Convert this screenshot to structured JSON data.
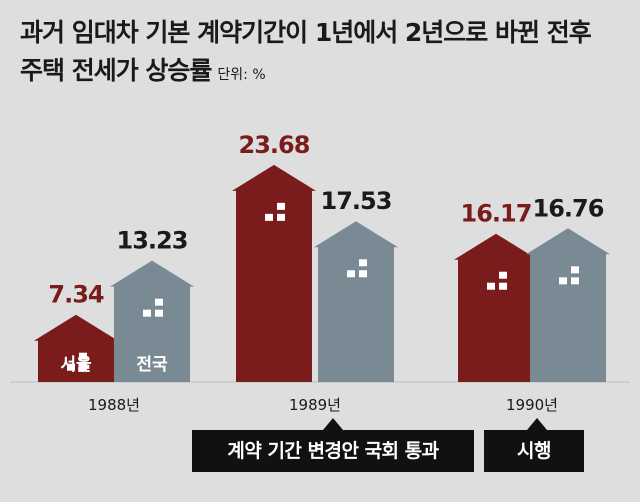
{
  "title_line1": "과거 임대차 기본 계약기간이 1년에서 2년으로 바뀐 전후",
  "title_line2": "주택 전세가 상승률",
  "unit": "단위: %",
  "notes": {
    "law_passed": "계약 기간 변경안 국회 통과",
    "enforced": "시행"
  },
  "colors": {
    "seoul": "#7a1c1c",
    "national": "#7a8a94",
    "seoul_label": "#7a1c1c",
    "national_label": "#1a1a1a",
    "background": "#dedede"
  },
  "chart_data": {
    "type": "bar",
    "categories": [
      "1988년",
      "1989년",
      "1990년"
    ],
    "series": [
      {
        "name": "서울",
        "values": [
          7.34,
          23.68,
          16.17
        ]
      },
      {
        "name": "전국",
        "values": [
          13.23,
          17.53,
          16.76
        ]
      }
    ],
    "value_labels": [
      [
        "7.34",
        "23.68",
        "16.17"
      ],
      [
        "13.23",
        "17.53",
        "16.76"
      ]
    ],
    "ylim": [
      0,
      25
    ]
  }
}
